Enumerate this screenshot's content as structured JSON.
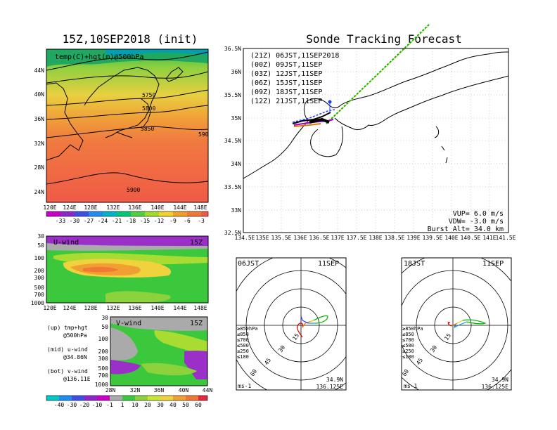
{
  "title_left": "15Z,10SEP2018 (init)",
  "title_right": "Sonde Tracking Forecast",
  "map_panel": {
    "label": "temp(C)+hgt(m)@500hPa",
    "contours": [
      "5750",
      "5800",
      "5850",
      "590",
      "5900"
    ],
    "lat_ticks": [
      "44N",
      "40N",
      "36N",
      "32N",
      "28N",
      "24N"
    ],
    "lon_ticks": [
      "120E",
      "124E",
      "128E",
      "132E",
      "136E",
      "140E",
      "144E",
      "148E"
    ],
    "colorbar_ticks": [
      "-33",
      "-30",
      "-27",
      "-24",
      "-21",
      "-18",
      "-15",
      "-12",
      "-9",
      "-6",
      "-3"
    ]
  },
  "uwind_panel": {
    "label": "U-wind",
    "time": "15Z",
    "p_ticks": [
      "30",
      "50",
      "100",
      "200",
      "300",
      "500",
      "700",
      "1000"
    ],
    "lon_ticks": [
      "120E",
      "124E",
      "128E",
      "132E",
      "136E",
      "140E",
      "144E",
      "148E"
    ]
  },
  "vwind_panel": {
    "label": "V-wind",
    "time": "15Z",
    "p_ticks": [
      "30",
      "50",
      "100",
      "200",
      "300",
      "500",
      "700",
      "1000"
    ],
    "lat_ticks": [
      "28N",
      "32N",
      "36N",
      "40N",
      "44N"
    ],
    "colorbar_ticks": [
      "-40",
      "-30",
      "-20",
      "-10",
      "-1",
      "1",
      "10",
      "20",
      "30",
      "40",
      "50",
      "60"
    ]
  },
  "notes": [
    "(up) tmp+hgt",
    "@500hPa",
    "(mid) u-wind",
    "@34.86N",
    "(bot) v-wind",
    "@136.11E"
  ],
  "track_panel": {
    "legend": [
      {
        "label": "(21Z) 06JST,11SEP2018",
        "color": "#000000"
      },
      {
        "label": "(00Z) 09JST,11SEP",
        "color": "#a000c8"
      },
      {
        "label": "(03Z) 12JST,11SEP",
        "color": "#1e3cff"
      },
      {
        "label": "(06Z) 15JST,11SEP",
        "color": "#00b400"
      },
      {
        "label": "(09Z) 18JST,11SEP",
        "color": "#f0c800"
      },
      {
        "label": "(12Z) 21JST,11SEP",
        "color": "#e07800"
      }
    ],
    "lat_ticks": [
      "36.5N",
      "36N",
      "35.5N",
      "35N",
      "34.5N",
      "34N",
      "33.5N",
      "33N",
      "32.5N"
    ],
    "lon_ticks": [
      "134.5E",
      "135E",
      "135.5E",
      "136E",
      "136.5E",
      "137E",
      "137.5E",
      "138E",
      "138.5E",
      "139E",
      "139.5E",
      "140E",
      "140.5E",
      "141E",
      "141.5E"
    ],
    "info": [
      "VUP= 6.0 m/s",
      "VDW= -3.0 m/s",
      "Burst Alt= 34.0 km"
    ]
  },
  "polar_left": {
    "time": "06JST",
    "date": "11SEP",
    "rings": [
      "15",
      "30",
      "45",
      "60"
    ],
    "levels": [
      "≥850hPa",
      "≤850",
      "≤700",
      "≤500",
      "≤250",
      "≤100"
    ],
    "level_colors": [
      "#d00000",
      "#e07800",
      "#f0c800",
      "#00b400",
      "#00a0d0",
      "#1e3cff"
    ],
    "unit": "ms-1",
    "lat": "34.9N",
    "lon": "136.125E"
  },
  "polar_right": {
    "time": "18JST",
    "date": "11SEP",
    "rings": [
      "15",
      "30",
      "45",
      "60"
    ],
    "levels": [
      "≥850hPa",
      "≤850",
      "≤700",
      "≤500",
      "≤250",
      "≤100"
    ],
    "level_colors": [
      "#d00000",
      "#e07800",
      "#f0c800",
      "#00b400",
      "#00a0d0",
      "#1e3cff"
    ],
    "unit": "ms-1",
    "lat": "34.9N",
    "lon": "136.125E"
  }
}
